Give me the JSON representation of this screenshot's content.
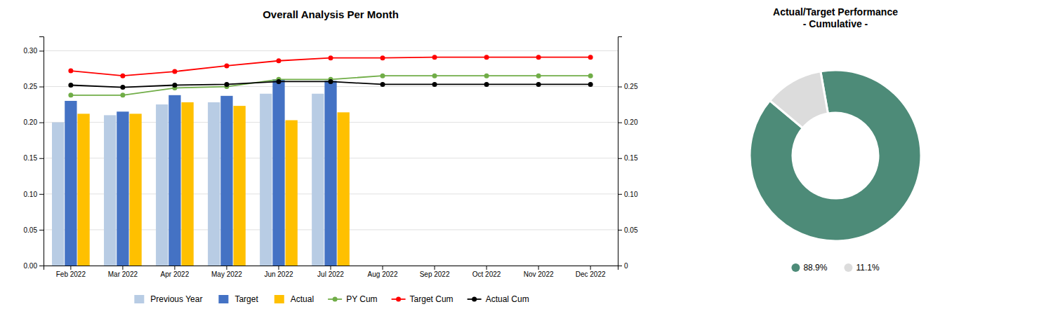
{
  "chart_data": [
    {
      "type": "bar",
      "title": "Overall Analysis Per Month",
      "categories": [
        "Feb 2022",
        "Mar 2022",
        "Apr 2022",
        "May 2022",
        "Jun 2022",
        "Jul 2022",
        "Aug 2022",
        "Sep 2022",
        "Oct 2022",
        "Nov 2022",
        "Dec 2022"
      ],
      "series": [
        {
          "name": "Previous Year",
          "type": "bar",
          "color": "#b8cce4",
          "values": [
            0.2,
            0.21,
            0.225,
            0.228,
            0.24,
            0.24,
            null,
            null,
            null,
            null,
            null
          ]
        },
        {
          "name": "Target",
          "type": "bar",
          "color": "#4472c4",
          "values": [
            0.23,
            0.215,
            0.238,
            0.237,
            0.26,
            0.258,
            null,
            null,
            null,
            null,
            null
          ]
        },
        {
          "name": "Actual",
          "type": "bar",
          "color": "#ffc000",
          "values": [
            0.212,
            0.212,
            0.228,
            0.223,
            0.203,
            0.214,
            null,
            null,
            null,
            null,
            null
          ]
        },
        {
          "name": "PY Cum",
          "type": "line",
          "marker": "circle",
          "color": "#70ad47",
          "values": [
            0.238,
            0.238,
            0.248,
            0.25,
            0.26,
            0.26,
            0.265,
            0.265,
            0.265,
            0.265,
            0.265
          ]
        },
        {
          "name": "Target Cum",
          "type": "line",
          "marker": "circle",
          "color": "#ff0000",
          "values": [
            0.272,
            0.265,
            0.271,
            0.279,
            0.286,
            0.29,
            0.29,
            0.291,
            0.291,
            0.291,
            0.291
          ]
        },
        {
          "name": "Actual Cum",
          "type": "line",
          "marker": "circle",
          "color": "#000000",
          "values": [
            0.252,
            0.249,
            0.252,
            0.253,
            0.257,
            0.257,
            0.253,
            0.253,
            0.253,
            0.253,
            0.253
          ]
        }
      ],
      "ylim": [
        0.0,
        0.32
      ],
      "yticks": [
        {
          "value": 0.0,
          "label": "0.00"
        },
        0.05,
        {
          "value": 0.1,
          "label": "0.10"
        },
        0.15,
        {
          "value": 0.2,
          "label": "0.20"
        },
        0.25,
        {
          "value": 0.3,
          "label": "0.30"
        }
      ],
      "y2lim": [
        0.0,
        0.32
      ],
      "y2ticks": [
        0,
        0.05,
        {
          "value": 0.1,
          "label": "0.10"
        },
        0.15,
        {
          "value": 0.2,
          "label": "0.20"
        },
        0.25
      ],
      "grid": true,
      "legend": "bottom"
    },
    {
      "type": "donut",
      "title": "Actual/Target Performance\n- Cumulative -",
      "categories": [
        "88.9%",
        "11.1%"
      ],
      "values": [
        88.9,
        11.1
      ],
      "colors": [
        "#4d8b78",
        "#dcdcdc"
      ],
      "legend": "bottom"
    }
  ]
}
